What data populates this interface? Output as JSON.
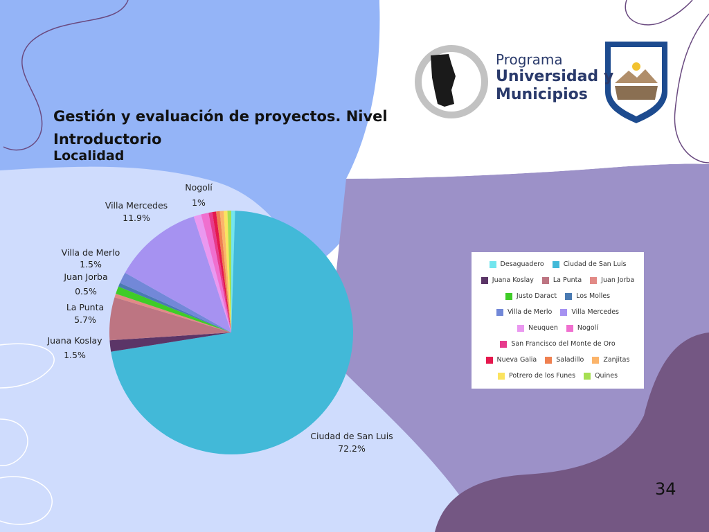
{
  "slide": {
    "title": "Gestión y evaluación de proyectos. Nivel Introductorio",
    "page_number": "34"
  },
  "logo": {
    "line1": "Programa",
    "line2": "Universidad y",
    "line3": "Municipios"
  },
  "colors": {
    "bg_blue": "#94b4f7",
    "bg_light": "#cfdcfd",
    "bg_purple": "#9c91c8",
    "bg_dark_purple": "#745783"
  },
  "chart_data": {
    "type": "pie",
    "title": "Localidad",
    "legend_position": "right",
    "slices": [
      {
        "name": "Desaguadero",
        "value": 0.5,
        "color": "#72e5ee",
        "label": ""
      },
      {
        "name": "Ciudad de San Luis",
        "value": 72.2,
        "color": "#42b9d8",
        "label": "72.2%"
      },
      {
        "name": "Juana Koslay",
        "value": 1.5,
        "color": "#5b3567",
        "label": "1.5%"
      },
      {
        "name": "La Punta",
        "value": 5.7,
        "color": "#bd7582",
        "label": "5.7%"
      },
      {
        "name": "Juan Jorba",
        "value": 0.5,
        "color": "#e28a86",
        "label": "0.5%"
      },
      {
        "name": "Justo Daract",
        "value": 1.0,
        "color": "#3fcc27",
        "label": ""
      },
      {
        "name": "Los Molles",
        "value": 0.5,
        "color": "#4a7ab2",
        "label": ""
      },
      {
        "name": "Villa de Merlo",
        "value": 1.5,
        "color": "#7288d8",
        "label": "1.5%"
      },
      {
        "name": "Villa Mercedes",
        "value": 11.9,
        "color": "#a692f1",
        "label": "11.9%"
      },
      {
        "name": "Neuquen",
        "value": 1.0,
        "color": "#ea98f0",
        "label": ""
      },
      {
        "name": "Nogolí",
        "value": 1.0,
        "color": "#f06fcf",
        "label": "1%"
      },
      {
        "name": "San Francisco del Monte de Oro",
        "value": 0.5,
        "color": "#e73a8c",
        "label": ""
      },
      {
        "name": "Nueva Galia",
        "value": 0.5,
        "color": "#e5184d",
        "label": ""
      },
      {
        "name": "Saladillo",
        "value": 0.5,
        "color": "#ef8050",
        "label": ""
      },
      {
        "name": "Zanjitas",
        "value": 0.5,
        "color": "#fbb46a",
        "label": ""
      },
      {
        "name": "Potrero de los Funes",
        "value": 0.5,
        "color": "#fbe35f",
        "label": ""
      },
      {
        "name": "Quines",
        "value": 0.5,
        "color": "#a6df52",
        "label": ""
      }
    ]
  }
}
